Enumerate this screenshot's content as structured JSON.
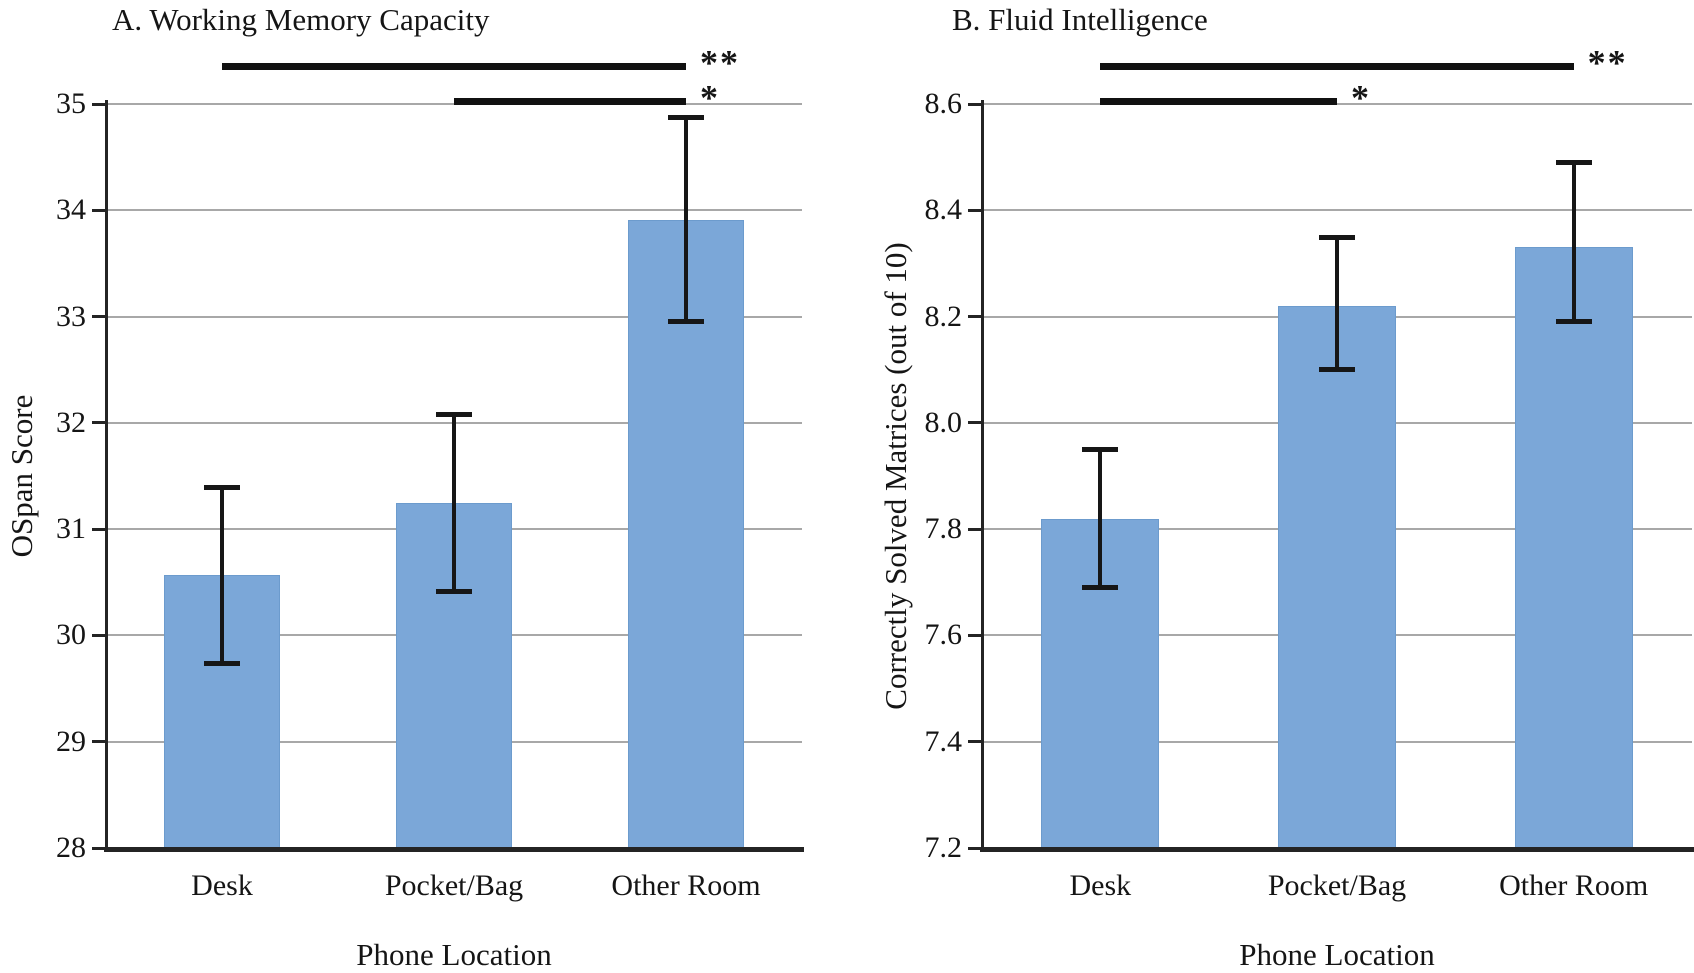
{
  "figure": {
    "background": "#ffffff",
    "bar_color": "#7BA7D8",
    "bar_border_color": "#6C9BCD",
    "gridline_color": "#A8A8A8",
    "axis_color": "#242424",
    "error_bar_color": "#161616",
    "significance_line_color": "#111111",
    "text_color": "#151515"
  },
  "chart_data": [
    {
      "panel": "A",
      "type": "bar",
      "title": "A. Working Memory Capacity",
      "xlabel": "Phone Location",
      "ylabel": "OSpan Score",
      "categories": [
        "Desk",
        "Pocket/Bag",
        "Other Room"
      ],
      "values": [
        30.57,
        31.25,
        33.91
      ],
      "error_low": [
        29.73,
        30.41,
        32.95
      ],
      "error_high": [
        31.4,
        32.08,
        34.88
      ],
      "ylim": [
        28,
        35
      ],
      "yticks": [
        28,
        29,
        30,
        31,
        32,
        33,
        34,
        35
      ],
      "ytick_labels": [
        "28",
        "29",
        "30",
        "31",
        "32",
        "33",
        "34",
        "35"
      ],
      "grid": true,
      "legend": null,
      "significance": [
        {
          "from": 0,
          "to": 2,
          "label": "**",
          "level": "upper"
        },
        {
          "from": 1,
          "to": 2,
          "label": "*",
          "level": "axis-top"
        }
      ]
    },
    {
      "panel": "B",
      "type": "bar",
      "title": "B. Fluid Intelligence",
      "xlabel": "Phone Location",
      "ylabel": "Correctly Solved Matrices (out of 10)",
      "categories": [
        "Desk",
        "Pocket/Bag",
        "Other Room"
      ],
      "values": [
        7.82,
        8.22,
        8.33
      ],
      "error_low": [
        7.69,
        8.1,
        8.19
      ],
      "error_high": [
        7.95,
        8.35,
        8.49
      ],
      "ylim": [
        7.2,
        8.6
      ],
      "yticks": [
        7.2,
        7.4,
        7.6,
        7.8,
        8.0,
        8.2,
        8.4,
        8.6
      ],
      "ytick_labels": [
        "7.2",
        "7.4",
        "7.6",
        "7.8",
        "8.0",
        "8.2",
        "8.4",
        "8.6"
      ],
      "grid": true,
      "legend": null,
      "significance": [
        {
          "from": 0,
          "to": 2,
          "label": "**",
          "level": "upper"
        },
        {
          "from": 0,
          "to": 1,
          "label": "*",
          "level": "axis-top"
        }
      ]
    }
  ]
}
